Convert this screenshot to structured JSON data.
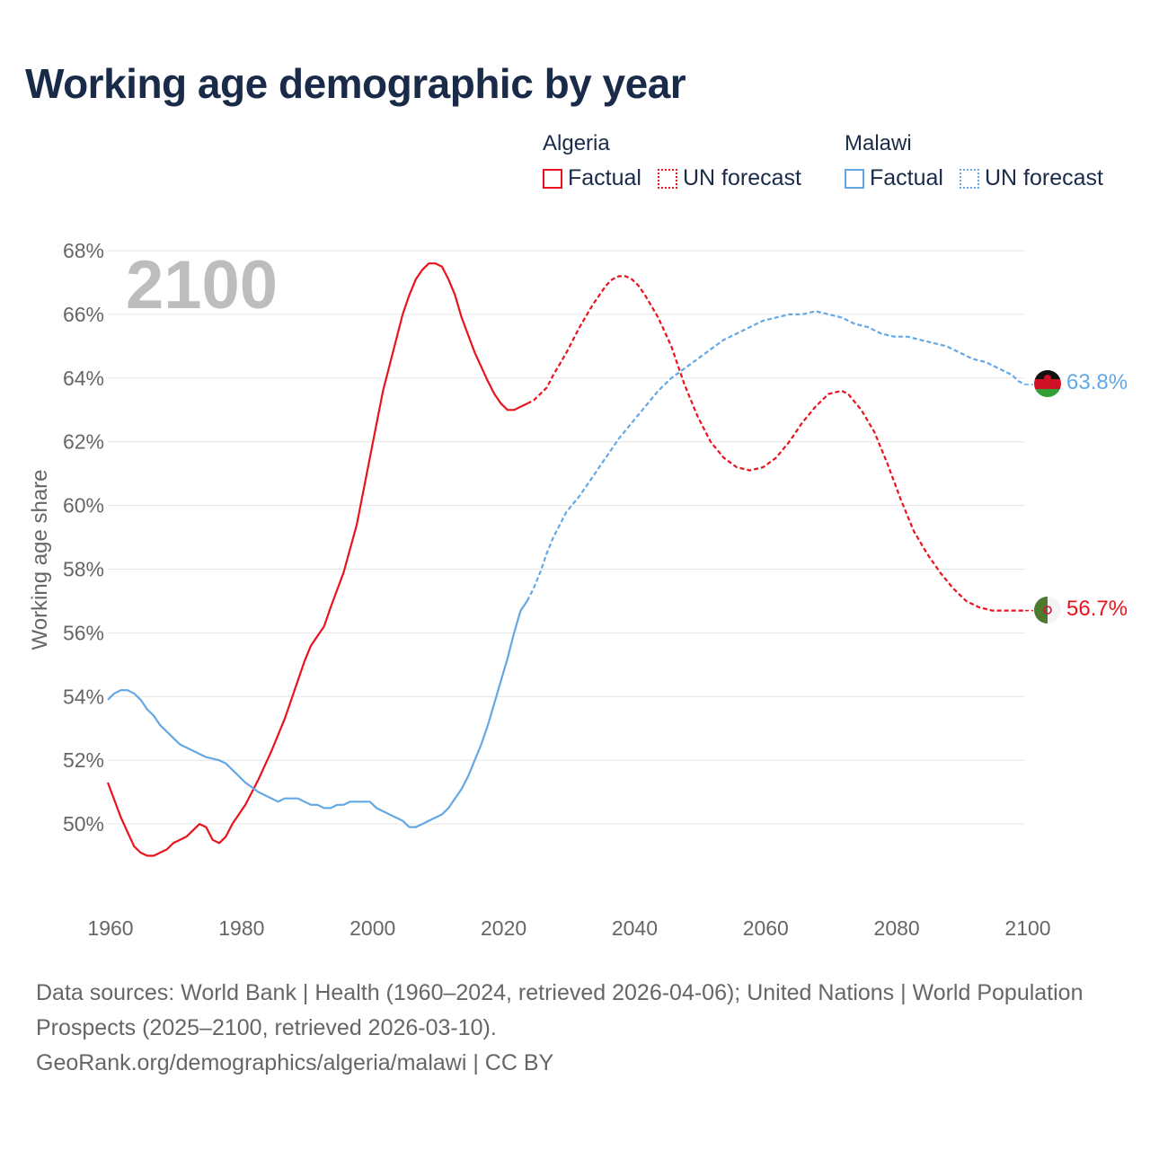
{
  "title": "Working age demographic by year",
  "legend": {
    "groups": [
      {
        "name": "Algeria",
        "factual_label": "Factual",
        "forecast_label": "UN forecast",
        "color": "#e8131d"
      },
      {
        "name": "Malawi",
        "factual_label": "Factual",
        "forecast_label": "UN forecast",
        "color": "#63a8e5"
      }
    ]
  },
  "footer": {
    "sources": "Data sources: World Bank | Health (1960–2024, retrieved 2026-04-06); United Nations | World Population Prospects (2025–2100, retrieved 2026-03-10).",
    "credit": "GeoRank.org/demographics/algeria/malawi | CC BY"
  },
  "chart_data": {
    "type": "line",
    "ylabel": "Working age share",
    "xlabel": "",
    "year_label": "2100",
    "xlim": [
      1960,
      2100
    ],
    "ylim": [
      48,
      68
    ],
    "x_ticks": [
      "1960",
      "1980",
      "2000",
      "2020",
      "2040",
      "2060",
      "2080",
      "2100"
    ],
    "y_ticks": [
      "50%",
      "52%",
      "54%",
      "56%",
      "58%",
      "60%",
      "62%",
      "64%",
      "66%",
      "68%"
    ],
    "series": [
      {
        "name": "Algeria",
        "color": "#e8131d",
        "end_label": "56.7%",
        "factual": [
          [
            1960,
            51.3
          ],
          [
            1962,
            50.2
          ],
          [
            1964,
            49.3
          ],
          [
            1965,
            49.1
          ],
          [
            1966,
            49.0
          ],
          [
            1967,
            49.0
          ],
          [
            1968,
            49.1
          ],
          [
            1969,
            49.2
          ],
          [
            1970,
            49.4
          ],
          [
            1972,
            49.6
          ],
          [
            1974,
            50.0
          ],
          [
            1975,
            49.9
          ],
          [
            1976,
            49.5
          ],
          [
            1977,
            49.4
          ],
          [
            1978,
            49.6
          ],
          [
            1979,
            50.0
          ],
          [
            1981,
            50.6
          ],
          [
            1983,
            51.4
          ],
          [
            1985,
            52.3
          ],
          [
            1987,
            53.3
          ],
          [
            1989,
            54.5
          ],
          [
            1990,
            55.1
          ],
          [
            1991,
            55.6
          ],
          [
            1992,
            55.9
          ],
          [
            1993,
            56.2
          ],
          [
            1994,
            56.8
          ],
          [
            1996,
            57.9
          ],
          [
            1998,
            59.4
          ],
          [
            2000,
            61.5
          ],
          [
            2002,
            63.6
          ],
          [
            2004,
            65.2
          ],
          [
            2005,
            66.0
          ],
          [
            2006,
            66.6
          ],
          [
            2007,
            67.1
          ],
          [
            2008,
            67.4
          ],
          [
            2009,
            67.6
          ],
          [
            2010,
            67.6
          ],
          [
            2011,
            67.5
          ],
          [
            2012,
            67.1
          ],
          [
            2013,
            66.6
          ],
          [
            2014,
            65.9
          ],
          [
            2016,
            64.8
          ],
          [
            2018,
            63.9
          ],
          [
            2019,
            63.5
          ],
          [
            2020,
            63.2
          ],
          [
            2021,
            63.0
          ],
          [
            2022,
            63.0
          ],
          [
            2023,
            63.1
          ],
          [
            2024,
            63.2
          ]
        ],
        "forecast": [
          [
            2024,
            63.2
          ],
          [
            2025,
            63.3
          ],
          [
            2026,
            63.5
          ],
          [
            2027,
            63.7
          ],
          [
            2028,
            64.1
          ],
          [
            2030,
            64.8
          ],
          [
            2032,
            65.6
          ],
          [
            2034,
            66.3
          ],
          [
            2036,
            66.9
          ],
          [
            2037,
            67.1
          ],
          [
            2038,
            67.2
          ],
          [
            2039,
            67.2
          ],
          [
            2040,
            67.1
          ],
          [
            2041,
            66.9
          ],
          [
            2042,
            66.6
          ],
          [
            2044,
            65.9
          ],
          [
            2046,
            65.0
          ],
          [
            2048,
            63.8
          ],
          [
            2050,
            62.8
          ],
          [
            2052,
            62.0
          ],
          [
            2054,
            61.5
          ],
          [
            2056,
            61.2
          ],
          [
            2058,
            61.1
          ],
          [
            2060,
            61.2
          ],
          [
            2062,
            61.5
          ],
          [
            2064,
            62.0
          ],
          [
            2066,
            62.6
          ],
          [
            2068,
            63.1
          ],
          [
            2070,
            63.5
          ],
          [
            2072,
            63.6
          ],
          [
            2073,
            63.5
          ],
          [
            2075,
            63.0
          ],
          [
            2077,
            62.3
          ],
          [
            2079,
            61.3
          ],
          [
            2081,
            60.2
          ],
          [
            2083,
            59.2
          ],
          [
            2085,
            58.5
          ],
          [
            2087,
            57.9
          ],
          [
            2089,
            57.4
          ],
          [
            2091,
            57.0
          ],
          [
            2093,
            56.8
          ],
          [
            2095,
            56.7
          ],
          [
            2100,
            56.7
          ]
        ]
      },
      {
        "name": "Malawi",
        "color": "#63a8e5",
        "end_label": "63.8%",
        "factual": [
          [
            1960,
            53.9
          ],
          [
            1961,
            54.1
          ],
          [
            1962,
            54.2
          ],
          [
            1963,
            54.2
          ],
          [
            1964,
            54.1
          ],
          [
            1965,
            53.9
          ],
          [
            1966,
            53.6
          ],
          [
            1967,
            53.4
          ],
          [
            1968,
            53.1
          ],
          [
            1970,
            52.7
          ],
          [
            1971,
            52.5
          ],
          [
            1973,
            52.3
          ],
          [
            1975,
            52.1
          ],
          [
            1977,
            52.0
          ],
          [
            1978,
            51.9
          ],
          [
            1979,
            51.7
          ],
          [
            1981,
            51.3
          ],
          [
            1983,
            51.0
          ],
          [
            1985,
            50.8
          ],
          [
            1986,
            50.7
          ],
          [
            1987,
            50.8
          ],
          [
            1989,
            50.8
          ],
          [
            1990,
            50.7
          ],
          [
            1991,
            50.6
          ],
          [
            1992,
            50.6
          ],
          [
            1993,
            50.5
          ],
          [
            1994,
            50.5
          ],
          [
            1995,
            50.6
          ],
          [
            1996,
            50.6
          ],
          [
            1997,
            50.7
          ],
          [
            1998,
            50.7
          ],
          [
            2000,
            50.7
          ],
          [
            2001,
            50.5
          ],
          [
            2003,
            50.3
          ],
          [
            2005,
            50.1
          ],
          [
            2006,
            49.9
          ],
          [
            2007,
            49.9
          ],
          [
            2008,
            50.0
          ],
          [
            2010,
            50.2
          ],
          [
            2011,
            50.3
          ],
          [
            2012,
            50.5
          ],
          [
            2013,
            50.8
          ],
          [
            2014,
            51.1
          ],
          [
            2015,
            51.5
          ],
          [
            2016,
            52.0
          ],
          [
            2017,
            52.5
          ],
          [
            2018,
            53.1
          ],
          [
            2019,
            53.8
          ],
          [
            2020,
            54.5
          ],
          [
            2021,
            55.2
          ],
          [
            2022,
            56.0
          ],
          [
            2023,
            56.7
          ],
          [
            2024,
            57.0
          ]
        ],
        "forecast": [
          [
            2024,
            57.0
          ],
          [
            2025,
            57.4
          ],
          [
            2026,
            57.9
          ],
          [
            2027,
            58.5
          ],
          [
            2028,
            59.0
          ],
          [
            2030,
            59.8
          ],
          [
            2032,
            60.3
          ],
          [
            2034,
            60.9
          ],
          [
            2036,
            61.5
          ],
          [
            2038,
            62.1
          ],
          [
            2040,
            62.6
          ],
          [
            2042,
            63.1
          ],
          [
            2044,
            63.6
          ],
          [
            2046,
            64.0
          ],
          [
            2048,
            64.3
          ],
          [
            2050,
            64.6
          ],
          [
            2052,
            64.9
          ],
          [
            2054,
            65.2
          ],
          [
            2056,
            65.4
          ],
          [
            2058,
            65.6
          ],
          [
            2060,
            65.8
          ],
          [
            2062,
            65.9
          ],
          [
            2064,
            66.0
          ],
          [
            2066,
            66.0
          ],
          [
            2068,
            66.1
          ],
          [
            2070,
            66.0
          ],
          [
            2072,
            65.9
          ],
          [
            2074,
            65.7
          ],
          [
            2076,
            65.6
          ],
          [
            2078,
            65.4
          ],
          [
            2080,
            65.3
          ],
          [
            2082,
            65.3
          ],
          [
            2084,
            65.2
          ],
          [
            2086,
            65.1
          ],
          [
            2088,
            65.0
          ],
          [
            2090,
            64.8
          ],
          [
            2092,
            64.6
          ],
          [
            2094,
            64.5
          ],
          [
            2096,
            64.3
          ],
          [
            2098,
            64.1
          ],
          [
            2099,
            63.9
          ],
          [
            2100,
            63.8
          ]
        ]
      }
    ]
  }
}
